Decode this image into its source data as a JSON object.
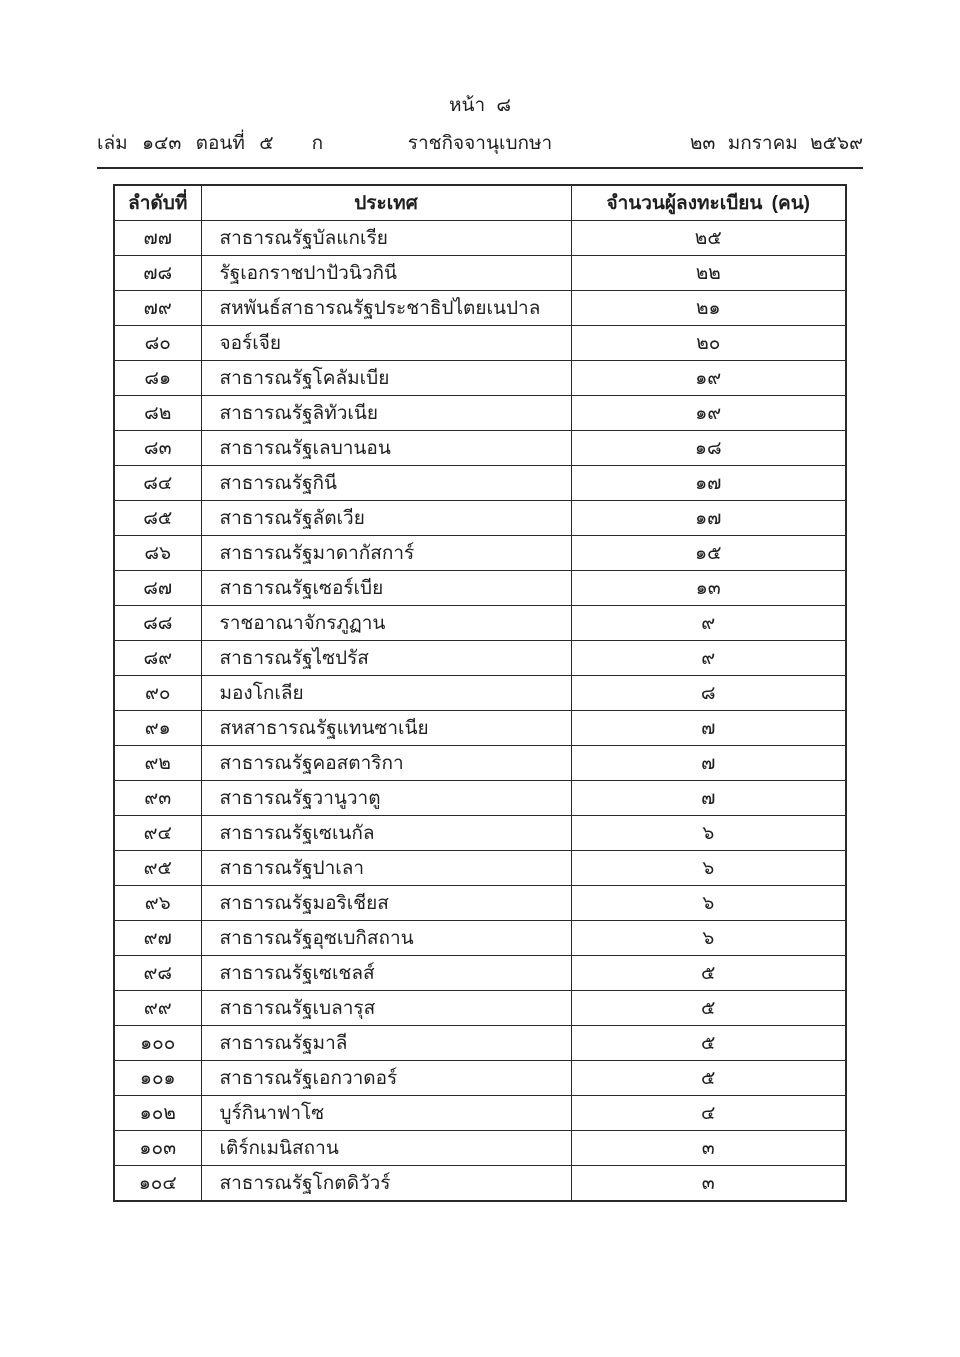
{
  "masthead": {
    "page_label": "หน้า ๘",
    "volume_part": "เล่ม ๑๔๓ ตอนที่ ๕",
    "section_letter": "ก",
    "gazette_title": "ราชกิจจานุเบกษา",
    "date": "๒๓ มกราคม ๒๕๖๙"
  },
  "table": {
    "headers": {
      "no": "ลำดับที่",
      "country": "ประเทศ",
      "count": "จำนวนผู้ลงทะเบียน (คน)"
    },
    "rows": [
      {
        "no": "๗๗",
        "country": "สาธารณรัฐบัลแกเรีย",
        "count": "๒๕"
      },
      {
        "no": "๗๘",
        "country": "รัฐเอกราชปาปัวนิวกินี",
        "count": "๒๒"
      },
      {
        "no": "๗๙",
        "country": "สหพันธ์สาธารณรัฐประชาธิปไตยเนปาล",
        "count": "๒๑"
      },
      {
        "no": "๘๐",
        "country": "จอร์เจีย",
        "count": "๒๐"
      },
      {
        "no": "๘๑",
        "country": "สาธารณรัฐโคลัมเบีย",
        "count": "๑๙"
      },
      {
        "no": "๘๒",
        "country": "สาธารณรัฐลิทัวเนีย",
        "count": "๑๙"
      },
      {
        "no": "๘๓",
        "country": "สาธารณรัฐเลบานอน",
        "count": "๑๘"
      },
      {
        "no": "๘๔",
        "country": "สาธารณรัฐกินี",
        "count": "๑๗"
      },
      {
        "no": "๘๕",
        "country": "สาธารณรัฐลัตเวีย",
        "count": "๑๗"
      },
      {
        "no": "๘๖",
        "country": "สาธารณรัฐมาดากัสการ์",
        "count": "๑๕"
      },
      {
        "no": "๘๗",
        "country": "สาธารณรัฐเซอร์เบีย",
        "count": "๑๓"
      },
      {
        "no": "๘๘",
        "country": "ราชอาณาจักรภูฏาน",
        "count": "๙"
      },
      {
        "no": "๘๙",
        "country": "สาธารณรัฐไซปรัส",
        "count": "๙"
      },
      {
        "no": "๙๐",
        "country": "มองโกเลีย",
        "count": "๘"
      },
      {
        "no": "๙๑",
        "country": "สหสาธารณรัฐแทนซาเนีย",
        "count": "๗"
      },
      {
        "no": "๙๒",
        "country": "สาธารณรัฐคอสตาริกา",
        "count": "๗"
      },
      {
        "no": "๙๓",
        "country": "สาธารณรัฐวานูวาตู",
        "count": "๗"
      },
      {
        "no": "๙๔",
        "country": "สาธารณรัฐเซเนกัล",
        "count": "๖"
      },
      {
        "no": "๙๕",
        "country": "สาธารณรัฐปาเลา",
        "count": "๖"
      },
      {
        "no": "๙๖",
        "country": "สาธารณรัฐมอริเชียส",
        "count": "๖"
      },
      {
        "no": "๙๗",
        "country": "สาธารณรัฐอุซเบกิสถาน",
        "count": "๖"
      },
      {
        "no": "๙๘",
        "country": "สาธารณรัฐเซเชลส์",
        "count": "๕"
      },
      {
        "no": "๙๙",
        "country": "สาธารณรัฐเบลารุส",
        "count": "๕"
      },
      {
        "no": "๑๐๐",
        "country": "สาธารณรัฐมาลี",
        "count": "๕"
      },
      {
        "no": "๑๐๑",
        "country": "สาธารณรัฐเอกวาดอร์",
        "count": "๕"
      },
      {
        "no": "๑๐๒",
        "country": "บูร์กินาฟาโซ",
        "count": "๔"
      },
      {
        "no": "๑๐๓",
        "country": "เติร์กเมนิสถาน",
        "count": "๓"
      },
      {
        "no": "๑๐๔",
        "country": "สาธารณรัฐโกตดิวัวร์",
        "count": "๓"
      }
    ]
  }
}
